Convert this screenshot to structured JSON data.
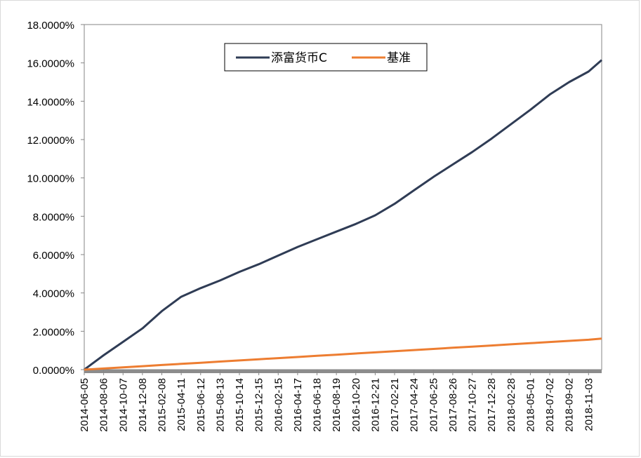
{
  "chart_data": {
    "type": "line",
    "title": "",
    "xlabel": "",
    "ylabel": "",
    "x": [
      "2014-06-05",
      "2014-08-06",
      "2014-10-07",
      "2014-12-08",
      "2015-02-08",
      "2015-04-11",
      "2015-06-12",
      "2015-08-13",
      "2015-10-14",
      "2015-12-15",
      "2016-02-15",
      "2016-04-17",
      "2016-06-18",
      "2016-08-19",
      "2016-10-20",
      "2016-12-21",
      "2017-02-21",
      "2017-04-24",
      "2017-06-25",
      "2017-08-26",
      "2017-10-27",
      "2017-12-28",
      "2018-02-28",
      "2018-05-01",
      "2018-07-02",
      "2018-09-02",
      "2018-11-03"
    ],
    "x_end": "2018-12-15",
    "ylim": [
      0,
      18
    ],
    "y_ticks": [
      "0.0000%",
      "2.0000%",
      "4.0000%",
      "6.0000%",
      "8.0000%",
      "10.0000%",
      "12.0000%",
      "14.0000%",
      "16.0000%",
      "18.0000%"
    ],
    "grid": false,
    "legend_position": "top-center",
    "series": [
      {
        "name": "添富货币C",
        "color": "#2f3c55",
        "values": [
          0.0,
          0.75,
          1.45,
          2.15,
          3.05,
          3.8,
          4.25,
          4.65,
          5.1,
          5.5,
          5.95,
          6.4,
          6.8,
          7.2,
          7.6,
          8.05,
          8.65,
          9.35,
          10.05,
          10.7,
          11.35,
          12.05,
          12.8,
          13.55,
          14.35,
          15.0,
          15.55
        ],
        "end_value": 16.15
      },
      {
        "name": "基准",
        "color": "#ed7d31",
        "values": [
          0.0,
          0.06,
          0.12,
          0.18,
          0.24,
          0.3,
          0.36,
          0.42,
          0.48,
          0.54,
          0.6,
          0.66,
          0.72,
          0.78,
          0.84,
          0.9,
          0.96,
          1.02,
          1.08,
          1.14,
          1.2,
          1.26,
          1.32,
          1.38,
          1.44,
          1.5,
          1.56
        ],
        "end_value": 1.62
      }
    ]
  }
}
